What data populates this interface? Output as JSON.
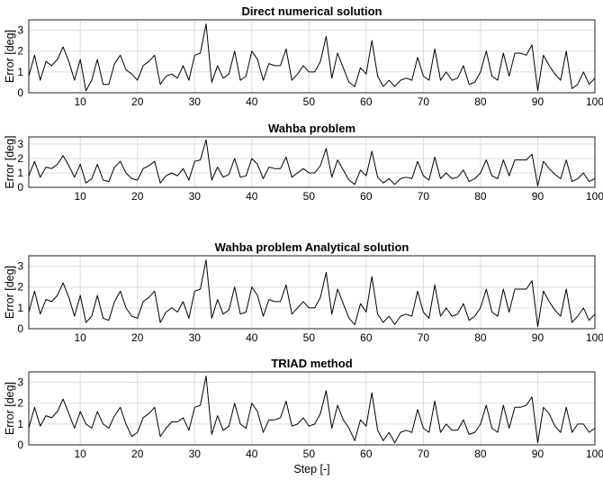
{
  "chart_data": [
    {
      "type": "line",
      "title": "Direct numerical solution",
      "ylabel": "Error [deg]",
      "xlabel": "",
      "xlim": [
        1,
        100
      ],
      "ylim": [
        0,
        3.5
      ],
      "xticks": [
        10,
        20,
        30,
        40,
        50,
        60,
        70,
        80,
        90,
        100
      ],
      "yticks": [
        0,
        1,
        2,
        3
      ],
      "grid": true,
      "series": [
        {
          "x": [
            1,
            2,
            3,
            4,
            5,
            6,
            7,
            8,
            9,
            10,
            11,
            12,
            13,
            14,
            15,
            16,
            17,
            18,
            19,
            20,
            21,
            22,
            23,
            24,
            25,
            26,
            27,
            28,
            29,
            30,
            31,
            32,
            33,
            34,
            35,
            36,
            37,
            38,
            39,
            40,
            41,
            42,
            43,
            44,
            45,
            46,
            47,
            48,
            49,
            50,
            51,
            52,
            53,
            54,
            55,
            56,
            57,
            58,
            59,
            60,
            61,
            62,
            63,
            64,
            65,
            66,
            67,
            68,
            69,
            70,
            71,
            72,
            73,
            74,
            75,
            76,
            77,
            78,
            79,
            80,
            81,
            82,
            83,
            84,
            85,
            86,
            87,
            88,
            89,
            90,
            91,
            92,
            93,
            94,
            95,
            96,
            97,
            98,
            99,
            100
          ],
          "y": [
            0.8,
            1.8,
            0.6,
            1.5,
            1.3,
            1.6,
            2.2,
            1.5,
            0.6,
            1.6,
            0.1,
            0.6,
            1.6,
            0.4,
            0.4,
            1.4,
            1.8,
            1.1,
            0.9,
            0.6,
            1.3,
            1.5,
            1.8,
            0.4,
            0.8,
            0.9,
            0.7,
            1.3,
            0.6,
            1.8,
            1.9,
            3.3,
            0.5,
            1.3,
            0.7,
            0.9,
            2.0,
            0.6,
            0.8,
            2.0,
            1.6,
            0.6,
            1.4,
            1.3,
            1.3,
            2.1,
            0.6,
            0.9,
            1.3,
            1.0,
            1.0,
            1.5,
            2.7,
            0.7,
            1.9,
            1.2,
            0.5,
            0.3,
            1.2,
            0.9,
            2.5,
            0.8,
            0.3,
            0.6,
            0.3,
            0.6,
            0.7,
            0.6,
            1.7,
            0.8,
            0.6,
            2.1,
            0.6,
            1.0,
            0.6,
            0.7,
            1.3,
            0.4,
            0.5,
            1.0,
            2.0,
            0.8,
            0.6,
            1.9,
            0.8,
            1.9,
            1.9,
            1.8,
            2.3,
            0.1,
            1.8,
            1.3,
            0.9,
            0.6,
            2.0,
            0.2,
            0.4,
            1.0,
            0.4,
            0.7
          ]
        }
      ]
    },
    {
      "type": "line",
      "title": "Wahba problem",
      "ylabel": "Error [deg]",
      "xlabel": "",
      "xlim": [
        1,
        100
      ],
      "ylim": [
        0,
        3.5
      ],
      "xticks": [
        10,
        20,
        30,
        40,
        50,
        60,
        70,
        80,
        90,
        100
      ],
      "yticks": [
        0,
        1,
        2,
        3
      ],
      "grid": true,
      "series": [
        {
          "x": [
            1,
            2,
            3,
            4,
            5,
            6,
            7,
            8,
            9,
            10,
            11,
            12,
            13,
            14,
            15,
            16,
            17,
            18,
            19,
            20,
            21,
            22,
            23,
            24,
            25,
            26,
            27,
            28,
            29,
            30,
            31,
            32,
            33,
            34,
            35,
            36,
            37,
            38,
            39,
            40,
            41,
            42,
            43,
            44,
            45,
            46,
            47,
            48,
            49,
            50,
            51,
            52,
            53,
            54,
            55,
            56,
            57,
            58,
            59,
            60,
            61,
            62,
            63,
            64,
            65,
            66,
            67,
            68,
            69,
            70,
            71,
            72,
            73,
            74,
            75,
            76,
            77,
            78,
            79,
            80,
            81,
            82,
            83,
            84,
            85,
            86,
            87,
            88,
            89,
            90,
            91,
            92,
            93,
            94,
            95,
            96,
            97,
            98,
            99,
            100
          ],
          "y": [
            0.8,
            1.8,
            0.7,
            1.4,
            1.3,
            1.6,
            2.2,
            1.5,
            0.7,
            1.6,
            0.3,
            0.6,
            1.6,
            0.5,
            0.4,
            1.4,
            1.8,
            1.0,
            0.6,
            0.5,
            1.3,
            1.5,
            1.8,
            0.3,
            0.8,
            1.0,
            0.8,
            1.3,
            0.5,
            1.8,
            1.9,
            3.3,
            0.5,
            1.4,
            0.7,
            0.9,
            2.0,
            0.7,
            0.8,
            2.0,
            1.6,
            0.6,
            1.4,
            1.3,
            1.3,
            2.1,
            0.7,
            1.0,
            1.3,
            1.0,
            1.0,
            1.5,
            2.7,
            0.7,
            1.9,
            1.2,
            0.5,
            0.2,
            1.2,
            0.8,
            2.5,
            0.7,
            0.3,
            0.6,
            0.2,
            0.6,
            0.7,
            0.6,
            1.8,
            0.8,
            0.5,
            2.1,
            0.6,
            1.0,
            0.6,
            0.7,
            1.2,
            0.4,
            0.6,
            1.0,
            1.9,
            0.8,
            0.6,
            1.9,
            0.8,
            1.9,
            1.9,
            1.9,
            2.3,
            0.1,
            1.8,
            1.3,
            0.9,
            0.6,
            1.9,
            0.4,
            0.6,
            1.0,
            0.4,
            0.6
          ]
        }
      ]
    },
    {
      "type": "line",
      "title": "Wahba problem Analytical solution",
      "ylabel": "Error [deg]",
      "xlabel": "",
      "xlim": [
        1,
        100
      ],
      "ylim": [
        0,
        3.5
      ],
      "xticks": [
        10,
        20,
        30,
        40,
        50,
        60,
        70,
        80,
        90,
        100
      ],
      "yticks": [
        0,
        1,
        2,
        3
      ],
      "grid": true,
      "series": [
        {
          "x": [
            1,
            2,
            3,
            4,
            5,
            6,
            7,
            8,
            9,
            10,
            11,
            12,
            13,
            14,
            15,
            16,
            17,
            18,
            19,
            20,
            21,
            22,
            23,
            24,
            25,
            26,
            27,
            28,
            29,
            30,
            31,
            32,
            33,
            34,
            35,
            36,
            37,
            38,
            39,
            40,
            41,
            42,
            43,
            44,
            45,
            46,
            47,
            48,
            49,
            50,
            51,
            52,
            53,
            54,
            55,
            56,
            57,
            58,
            59,
            60,
            61,
            62,
            63,
            64,
            65,
            66,
            67,
            68,
            69,
            70,
            71,
            72,
            73,
            74,
            75,
            76,
            77,
            78,
            79,
            80,
            81,
            82,
            83,
            84,
            85,
            86,
            87,
            88,
            89,
            90,
            91,
            92,
            93,
            94,
            95,
            96,
            97,
            98,
            99,
            100
          ],
          "y": [
            0.8,
            1.8,
            0.7,
            1.4,
            1.3,
            1.6,
            2.2,
            1.5,
            0.6,
            1.6,
            0.3,
            0.6,
            1.6,
            0.5,
            0.4,
            1.3,
            1.8,
            1.0,
            0.6,
            0.5,
            1.3,
            1.5,
            1.8,
            0.3,
            0.8,
            1.0,
            0.8,
            1.3,
            0.5,
            1.8,
            1.9,
            3.3,
            0.5,
            1.4,
            0.7,
            0.9,
            2.0,
            0.7,
            0.8,
            2.0,
            1.6,
            0.6,
            1.4,
            1.3,
            1.3,
            2.1,
            0.7,
            1.0,
            1.3,
            1.0,
            1.0,
            1.5,
            2.7,
            0.7,
            1.9,
            1.2,
            0.5,
            0.2,
            1.2,
            0.8,
            2.5,
            0.7,
            0.3,
            0.6,
            0.2,
            0.6,
            0.7,
            0.6,
            1.8,
            0.8,
            0.5,
            2.1,
            0.6,
            1.0,
            0.6,
            0.7,
            1.2,
            0.4,
            0.6,
            1.0,
            1.9,
            0.8,
            0.6,
            1.9,
            0.8,
            1.9,
            1.9,
            1.9,
            2.3,
            0.1,
            1.8,
            1.3,
            0.9,
            0.6,
            1.9,
            0.3,
            0.6,
            1.0,
            0.4,
            0.7
          ]
        }
      ]
    },
    {
      "type": "line",
      "title": "TRIAD method",
      "ylabel": "Error [deg]",
      "xlabel": "Step [-]",
      "xlim": [
        1,
        100
      ],
      "ylim": [
        0,
        3.5
      ],
      "xticks": [
        10,
        20,
        30,
        40,
        50,
        60,
        70,
        80,
        90,
        100
      ],
      "yticks": [
        0,
        1,
        2,
        3
      ],
      "grid": true,
      "series": [
        {
          "x": [
            1,
            2,
            3,
            4,
            5,
            6,
            7,
            8,
            9,
            10,
            11,
            12,
            13,
            14,
            15,
            16,
            17,
            18,
            19,
            20,
            21,
            22,
            23,
            24,
            25,
            26,
            27,
            28,
            29,
            30,
            31,
            32,
            33,
            34,
            35,
            36,
            37,
            38,
            39,
            40,
            41,
            42,
            43,
            44,
            45,
            46,
            47,
            48,
            49,
            50,
            51,
            52,
            53,
            54,
            55,
            56,
            57,
            58,
            59,
            60,
            61,
            62,
            63,
            64,
            65,
            66,
            67,
            68,
            69,
            70,
            71,
            72,
            73,
            74,
            75,
            76,
            77,
            78,
            79,
            80,
            81,
            82,
            83,
            84,
            85,
            86,
            87,
            88,
            89,
            90,
            91,
            92,
            93,
            94,
            95,
            96,
            97,
            98,
            99,
            100
          ],
          "y": [
            0.8,
            1.8,
            0.9,
            1.4,
            1.3,
            1.6,
            2.2,
            1.5,
            0.8,
            1.6,
            1.0,
            0.8,
            1.6,
            1.0,
            0.8,
            1.4,
            1.8,
            1.0,
            0.4,
            0.6,
            1.3,
            1.5,
            1.8,
            0.4,
            0.8,
            1.1,
            1.1,
            1.3,
            0.7,
            1.8,
            1.9,
            3.3,
            0.5,
            1.4,
            0.7,
            0.9,
            2.0,
            1.0,
            0.8,
            2.0,
            1.6,
            0.6,
            1.2,
            1.2,
            1.3,
            2.1,
            0.9,
            1.0,
            1.3,
            0.9,
            1.0,
            1.5,
            2.6,
            0.8,
            1.9,
            1.2,
            0.8,
            0.2,
            1.2,
            0.9,
            2.5,
            0.7,
            0.2,
            0.6,
            0.1,
            0.6,
            0.7,
            0.6,
            1.7,
            0.8,
            0.6,
            2.1,
            0.6,
            1.0,
            0.7,
            0.7,
            1.2,
            0.5,
            0.6,
            1.0,
            1.9,
            0.8,
            0.6,
            1.9,
            0.8,
            1.8,
            1.8,
            1.9,
            2.3,
            0.1,
            1.8,
            1.5,
            0.9,
            0.6,
            1.8,
            0.6,
            1.0,
            1.0,
            0.6,
            0.8
          ]
        }
      ]
    }
  ]
}
